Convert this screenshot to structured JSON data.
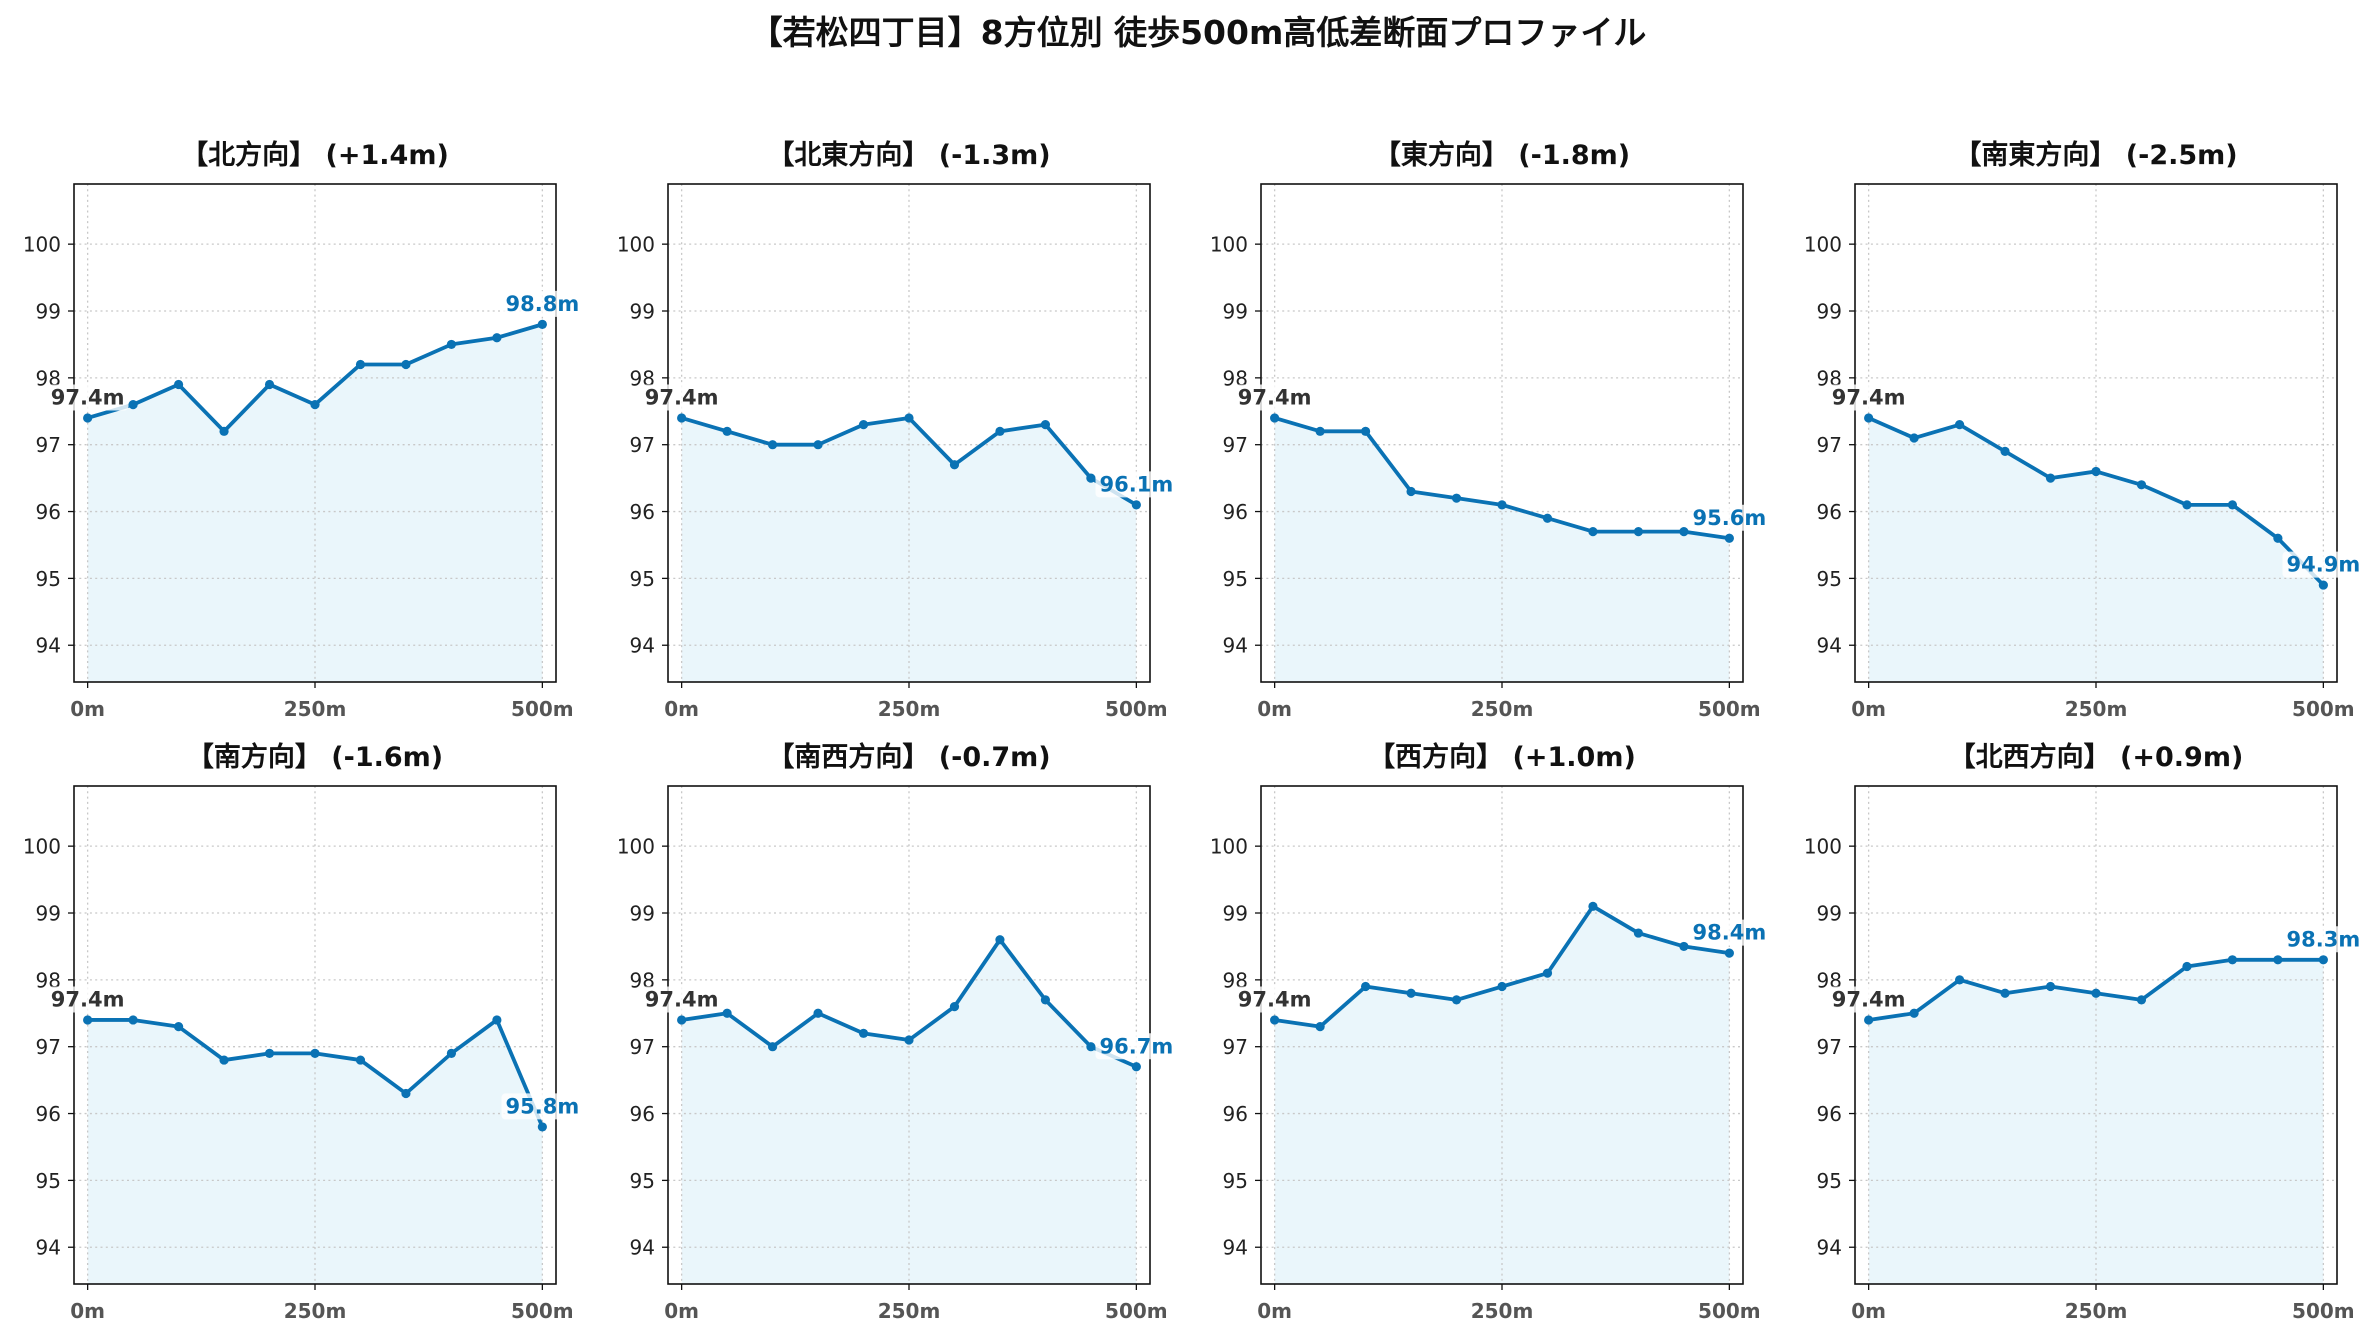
{
  "title": "【若松四丁目】8方位別 徒歩500m高低差断面プロファイル",
  "colors": {
    "line": "#0a72b4",
    "fill": "#eaf6fb",
    "start_label": "#333333",
    "end_label": "#0a72b4",
    "grid": "#c8c8c8",
    "axis": "#111111",
    "ytick_label": "#222222",
    "xtick_label": "#555555"
  },
  "chart_data": [
    {
      "type": "line",
      "title": "【北方向】 (+1.4m)",
      "x": [
        0,
        50,
        100,
        150,
        200,
        250,
        300,
        350,
        400,
        450,
        500
      ],
      "y": [
        97.4,
        97.6,
        97.9,
        97.2,
        97.9,
        97.6,
        98.2,
        98.2,
        98.5,
        98.6,
        98.8
      ],
      "start_label": "97.4m",
      "end_label": "98.8m",
      "xlim": [
        -15,
        515
      ],
      "ylim": [
        93.45,
        100.9
      ],
      "xticks": [
        0,
        250,
        500
      ],
      "xticklabels": [
        "0m",
        "250m",
        "500m"
      ],
      "yticks": [
        94,
        95,
        96,
        97,
        98,
        99,
        100
      ],
      "grid": true,
      "fill": true
    },
    {
      "type": "line",
      "title": "【北東方向】 (-1.3m)",
      "x": [
        0,
        50,
        100,
        150,
        200,
        250,
        300,
        350,
        400,
        450,
        500
      ],
      "y": [
        97.4,
        97.2,
        97.0,
        97.0,
        97.3,
        97.4,
        96.7,
        97.2,
        97.3,
        96.5,
        96.1
      ],
      "start_label": "97.4m",
      "end_label": "96.1m",
      "xlim": [
        -15,
        515
      ],
      "ylim": [
        93.45,
        100.9
      ],
      "xticks": [
        0,
        250,
        500
      ],
      "xticklabels": [
        "0m",
        "250m",
        "500m"
      ],
      "yticks": [
        94,
        95,
        96,
        97,
        98,
        99,
        100
      ],
      "grid": true,
      "fill": true
    },
    {
      "type": "line",
      "title": "【東方向】 (-1.8m)",
      "x": [
        0,
        50,
        100,
        150,
        200,
        250,
        300,
        350,
        400,
        450,
        500
      ],
      "y": [
        97.4,
        97.2,
        97.2,
        96.3,
        96.2,
        96.1,
        95.9,
        95.7,
        95.7,
        95.7,
        95.6
      ],
      "start_label": "97.4m",
      "end_label": "95.6m",
      "xlim": [
        -15,
        515
      ],
      "ylim": [
        93.45,
        100.9
      ],
      "xticks": [
        0,
        250,
        500
      ],
      "xticklabels": [
        "0m",
        "250m",
        "500m"
      ],
      "yticks": [
        94,
        95,
        96,
        97,
        98,
        99,
        100
      ],
      "grid": true,
      "fill": true
    },
    {
      "type": "line",
      "title": "【南東方向】 (-2.5m)",
      "x": [
        0,
        50,
        100,
        150,
        200,
        250,
        300,
        350,
        400,
        450,
        500
      ],
      "y": [
        97.4,
        97.1,
        97.3,
        96.9,
        96.5,
        96.6,
        96.4,
        96.1,
        96.1,
        95.6,
        94.9
      ],
      "start_label": "97.4m",
      "end_label": "94.9m",
      "xlim": [
        -15,
        515
      ],
      "ylim": [
        93.45,
        100.9
      ],
      "xticks": [
        0,
        250,
        500
      ],
      "xticklabels": [
        "0m",
        "250m",
        "500m"
      ],
      "yticks": [
        94,
        95,
        96,
        97,
        98,
        99,
        100
      ],
      "grid": true,
      "fill": true
    },
    {
      "type": "line",
      "title": "【南方向】 (-1.6m)",
      "x": [
        0,
        50,
        100,
        150,
        200,
        250,
        300,
        350,
        400,
        450,
        500
      ],
      "y": [
        97.4,
        97.4,
        97.3,
        96.8,
        96.9,
        96.9,
        96.8,
        96.3,
        96.9,
        97.4,
        95.8
      ],
      "start_label": "97.4m",
      "end_label": "95.8m",
      "xlim": [
        -15,
        515
      ],
      "ylim": [
        93.45,
        100.9
      ],
      "xticks": [
        0,
        250,
        500
      ],
      "xticklabels": [
        "0m",
        "250m",
        "500m"
      ],
      "yticks": [
        94,
        95,
        96,
        97,
        98,
        99,
        100
      ],
      "grid": true,
      "fill": true
    },
    {
      "type": "line",
      "title": "【南西方向】 (-0.7m)",
      "x": [
        0,
        50,
        100,
        150,
        200,
        250,
        300,
        350,
        400,
        450,
        500
      ],
      "y": [
        97.4,
        97.5,
        97.0,
        97.5,
        97.2,
        97.1,
        97.6,
        98.6,
        97.7,
        97.0,
        96.7
      ],
      "start_label": "97.4m",
      "end_label": "96.7m",
      "xlim": [
        -15,
        515
      ],
      "ylim": [
        93.45,
        100.9
      ],
      "xticks": [
        0,
        250,
        500
      ],
      "xticklabels": [
        "0m",
        "250m",
        "500m"
      ],
      "yticks": [
        94,
        95,
        96,
        97,
        98,
        99,
        100
      ],
      "grid": true,
      "fill": true
    },
    {
      "type": "line",
      "title": "【西方向】 (+1.0m)",
      "x": [
        0,
        50,
        100,
        150,
        200,
        250,
        300,
        350,
        400,
        450,
        500
      ],
      "y": [
        97.4,
        97.3,
        97.9,
        97.8,
        97.7,
        97.9,
        98.1,
        99.1,
        98.7,
        98.5,
        98.4
      ],
      "start_label": "97.4m",
      "end_label": "98.4m",
      "xlim": [
        -15,
        515
      ],
      "ylim": [
        93.45,
        100.9
      ],
      "xticks": [
        0,
        250,
        500
      ],
      "xticklabels": [
        "0m",
        "250m",
        "500m"
      ],
      "yticks": [
        94,
        95,
        96,
        97,
        98,
        99,
        100
      ],
      "grid": true,
      "fill": true
    },
    {
      "type": "line",
      "title": "【北西方向】 (+0.9m)",
      "x": [
        0,
        50,
        100,
        150,
        200,
        250,
        300,
        350,
        400,
        450,
        500
      ],
      "y": [
        97.4,
        97.5,
        98.0,
        97.8,
        97.9,
        97.8,
        97.7,
        98.2,
        98.3,
        98.3,
        98.3
      ],
      "start_label": "97.4m",
      "end_label": "98.3m",
      "xlim": [
        -15,
        515
      ],
      "ylim": [
        93.45,
        100.9
      ],
      "xticks": [
        0,
        250,
        500
      ],
      "xticklabels": [
        "0m",
        "250m",
        "500m"
      ],
      "yticks": [
        94,
        95,
        96,
        97,
        98,
        99,
        100
      ],
      "grid": true,
      "fill": true
    }
  ]
}
